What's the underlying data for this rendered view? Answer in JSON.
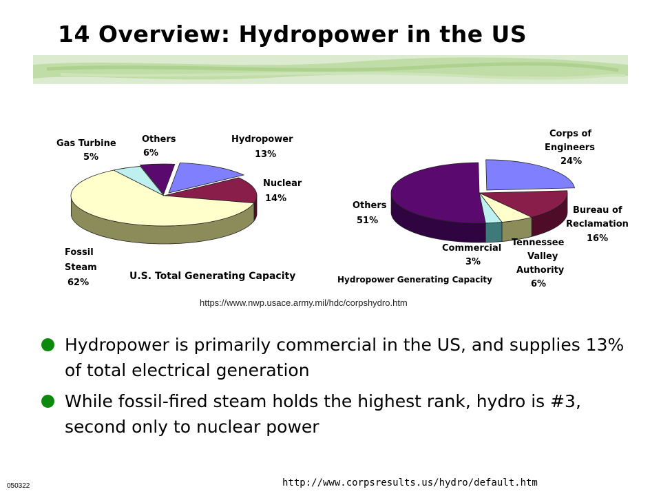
{
  "slide": {
    "title": "14 Overview: Hydropower in the US",
    "source_url": "https://www.nwp.usace.army.mil/hdc/corpshydro.htm",
    "footer_id": "050322",
    "footer_url": "http://www.corpsresults.us/hydro/default.htm"
  },
  "bullets": [
    "Hydropower is primarily commercial in the US, and supplies 13% of total electrical generation",
    "While fossil-fired steam holds the highest rank, hydro is #3, second only to nuclear power"
  ],
  "colors": {
    "bullet": "#0d8a0d",
    "stripe": "#c6dfb0"
  },
  "chart_data": [
    {
      "type": "pie",
      "style": "3d",
      "title": "U.S. Total Generating Capacity",
      "slices": [
        {
          "label": "Hydropower",
          "value_label": "13%",
          "value": 13,
          "color": "#8080ff",
          "side": "#3c3c8c"
        },
        {
          "label": "Nuclear",
          "value_label": "14%",
          "value": 14,
          "color": "#8a1e4a",
          "side": "#4e0c28"
        },
        {
          "label": "Fossil Steam",
          "value_label": "62%",
          "value": 62,
          "color": "#ffffcc",
          "side": "#8c8c5a"
        },
        {
          "label": "Gas Turbine",
          "value_label": "5%",
          "value": 5,
          "color": "#bff0f0",
          "side": "#5a8c8c"
        },
        {
          "label": "Others",
          "value_label": "6%",
          "value": 6,
          "color": "#5a0a6e",
          "side": "#300440"
        }
      ]
    },
    {
      "type": "pie",
      "style": "3d",
      "title": "Hydropower Generating Capacity",
      "slices": [
        {
          "label": "Corps of Engineers",
          "value_label": "24%",
          "value": 24,
          "color": "#8080ff",
          "side": "#3c3c8c"
        },
        {
          "label": "Bureau of Reclamation",
          "value_label": "16%",
          "value": 16,
          "color": "#8a1e4a",
          "side": "#4e0c28"
        },
        {
          "label": "Tennessee Valley Authority",
          "value_label": "6%",
          "value": 6,
          "color": "#ffffcc",
          "side": "#8c8c5a"
        },
        {
          "label": "Commercial",
          "value_label": "3%",
          "value": 3,
          "color": "#bff0f0",
          "side": "#3e7a7a"
        },
        {
          "label": "Others",
          "value_label": "51%",
          "value": 51,
          "color": "#5a0a6e",
          "side": "#300440"
        }
      ]
    }
  ]
}
